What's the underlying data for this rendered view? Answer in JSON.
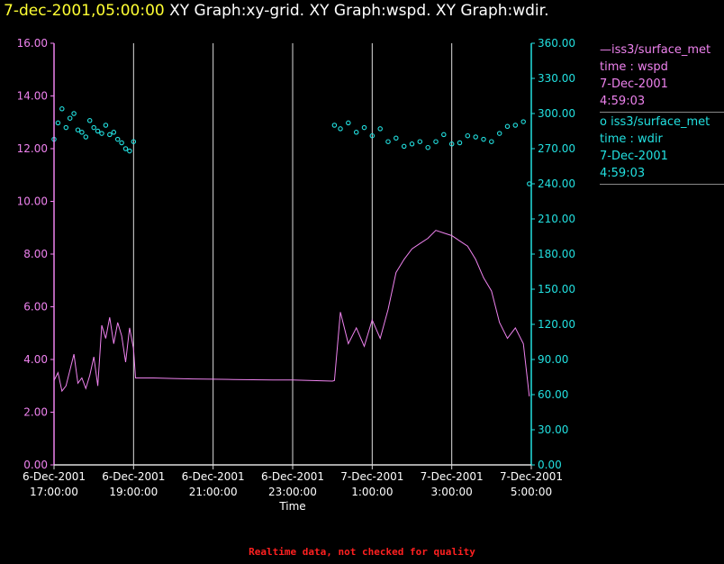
{
  "header": {
    "time": "7-dec-2001,05:00:00",
    "graphs": "XY Graph:xy-grid.  XY Graph:wspd.  XY Graph:wdir."
  },
  "footer": {
    "notice": "Realtime data, not checked for quality"
  },
  "legend": [
    {
      "glyph": "—",
      "source": "iss3/surface_met",
      "variable": "time : wspd",
      "date": "7-Dec-2001",
      "time": "4:59:03",
      "color": "#ee82ee"
    },
    {
      "glyph": "o",
      "source": "iss3/surface_met",
      "variable": "time : wdir",
      "date": "7-Dec-2001",
      "time": "4:59:03",
      "color": "#22e0e0"
    }
  ],
  "chart_data": {
    "type": "line",
    "xlabel": "Time",
    "x_ticks": [
      {
        "value": 17,
        "line1": "6-Dec-2001",
        "line2": "17:00:00"
      },
      {
        "value": 19,
        "line1": "6-Dec-2001",
        "line2": "19:00:00"
      },
      {
        "value": 21,
        "line1": "6-Dec-2001",
        "line2": "21:00:00"
      },
      {
        "value": 23,
        "line1": "6-Dec-2001",
        "line2": "23:00:00"
      },
      {
        "value": 25,
        "line1": "7-Dec-2001",
        "line2": "1:00:00"
      },
      {
        "value": 27,
        "line1": "7-Dec-2001",
        "line2": "3:00:00"
      },
      {
        "value": 29,
        "line1": "7-Dec-2001",
        "line2": "5:00:00"
      }
    ],
    "xlim": [
      17,
      29
    ],
    "y_left": {
      "range": [
        0,
        16
      ],
      "ticks": [
        "0.00",
        "2.00",
        "4.00",
        "6.00",
        "8.00",
        "10.00",
        "12.00",
        "14.00",
        "16.00"
      ],
      "color": "#ee82ee"
    },
    "y_right": {
      "range": [
        0,
        360
      ],
      "ticks": [
        "0.00",
        "30.00",
        "60.00",
        "90.00",
        "120.00",
        "150.00",
        "180.00",
        "210.00",
        "240.00",
        "270.00",
        "300.00",
        "330.00",
        "360.00"
      ],
      "color": "#22e0e0"
    },
    "grid": "vertical",
    "series": [
      {
        "name": "iss3/surface_met time : wspd",
        "axis": "left",
        "style": "line",
        "color": "#ee82ee",
        "x": [
          17.0,
          17.1,
          17.2,
          17.3,
          17.4,
          17.5,
          17.6,
          17.7,
          17.8,
          17.9,
          18.0,
          18.1,
          18.2,
          18.3,
          18.4,
          18.5,
          18.6,
          18.7,
          18.8,
          18.9,
          19.0,
          19.05,
          19.5,
          20.0,
          20.5,
          21.0,
          21.5,
          22.0,
          22.5,
          23.0,
          23.5,
          24.0,
          24.05,
          24.2,
          24.4,
          24.6,
          24.8,
          25.0,
          25.2,
          25.4,
          25.6,
          25.8,
          26.0,
          26.2,
          26.4,
          26.6,
          26.8,
          27.0,
          27.2,
          27.4,
          27.6,
          27.8,
          28.0,
          28.2,
          28.4,
          28.6,
          28.8,
          28.95
        ],
        "y": [
          3.2,
          3.5,
          2.8,
          3.0,
          3.6,
          4.2,
          3.1,
          3.3,
          2.9,
          3.4,
          4.1,
          3.0,
          5.3,
          4.8,
          5.6,
          4.6,
          5.4,
          4.9,
          3.9,
          5.2,
          4.4,
          3.3,
          3.3,
          3.28,
          3.26,
          3.25,
          3.24,
          3.23,
          3.22,
          3.22,
          3.2,
          3.18,
          3.2,
          5.8,
          4.6,
          5.2,
          4.5,
          5.5,
          4.8,
          5.9,
          7.3,
          7.8,
          8.2,
          8.4,
          8.6,
          8.9,
          8.8,
          8.7,
          8.5,
          8.3,
          7.8,
          7.1,
          6.6,
          5.4,
          4.8,
          5.2,
          4.6,
          2.6
        ]
      },
      {
        "name": "iss3/surface_met time : wdir",
        "axis": "right",
        "style": "scatter",
        "color": "#22e0e0",
        "x": [
          17.0,
          17.1,
          17.2,
          17.3,
          17.4,
          17.5,
          17.6,
          17.7,
          17.8,
          17.9,
          18.0,
          18.1,
          18.2,
          18.3,
          18.4,
          18.5,
          18.6,
          18.7,
          18.8,
          18.9,
          19.0,
          24.05,
          24.2,
          24.4,
          24.6,
          24.8,
          25.0,
          25.2,
          25.4,
          25.6,
          25.8,
          26.0,
          26.2,
          26.4,
          26.6,
          26.8,
          27.0,
          27.2,
          27.4,
          27.6,
          27.8,
          28.0,
          28.2,
          28.4,
          28.6,
          28.8,
          28.95
        ],
        "y": [
          278,
          292,
          304,
          288,
          296,
          300,
          286,
          284,
          280,
          294,
          288,
          285,
          283,
          290,
          282,
          284,
          278,
          275,
          270,
          268,
          276,
          290,
          287,
          292,
          284,
          288,
          281,
          287,
          276,
          279,
          272,
          274,
          276,
          271,
          276,
          282,
          274,
          275,
          281,
          280,
          278,
          276,
          283,
          289,
          290,
          293,
          240
        ]
      }
    ]
  }
}
